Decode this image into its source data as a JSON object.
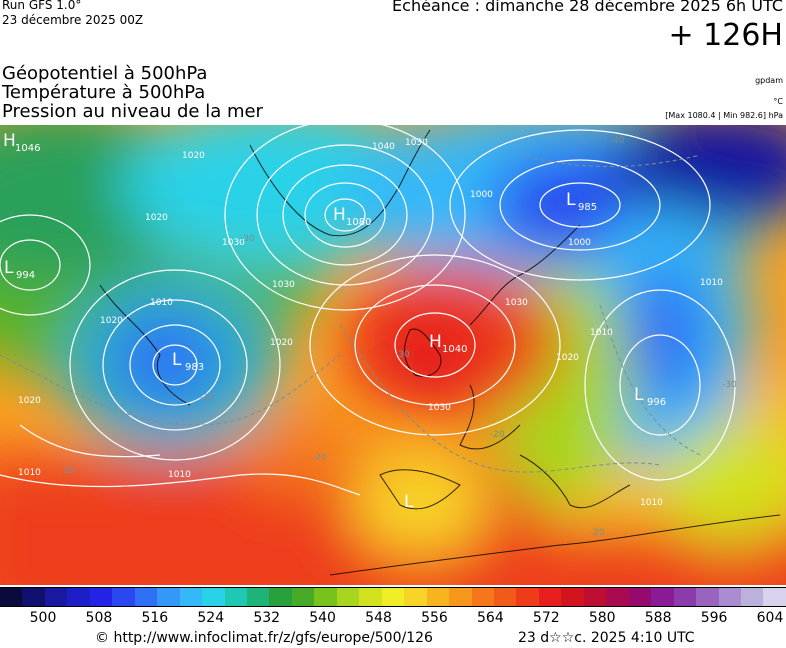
{
  "header": {
    "run": "Run GFS 1.0°",
    "run_date": "23 décembre 2025 00Z",
    "echeance": "Echéance : dimanche 28 décembre 2025 6h UTC",
    "hours": "+ 126H"
  },
  "fields": [
    {
      "label": "Géopotentiel à 500hPa",
      "unit": "gpdam"
    },
    {
      "label": "Température à 500hPa",
      "unit": "°C"
    },
    {
      "label": "Pression au niveau de la mer",
      "unit": "[Max 1080.4 | Min 982.6] hPa"
    }
  ],
  "centers": [
    {
      "type": "H",
      "value": "1046",
      "name": "high-north-canada"
    },
    {
      "type": "H",
      "value": "1080",
      "name": "high-greenland"
    },
    {
      "type": "L",
      "value": "985",
      "name": "low-barents"
    },
    {
      "type": "L",
      "value": "994",
      "name": "low-hudson"
    },
    {
      "type": "L",
      "value": "983",
      "name": "low-newfoundland"
    },
    {
      "type": "H",
      "value": "1040",
      "name": "high-british-isles"
    },
    {
      "type": "L",
      "value": "996",
      "name": "low-black-sea"
    },
    {
      "type": "L",
      "value": "",
      "name": "low-iberia"
    }
  ],
  "isobar_labels": [
    "1020",
    "1040",
    "1030",
    "1020",
    "1000",
    "1000",
    "1020",
    "1010",
    "1030",
    "1020",
    "1010",
    "1020",
    "1010",
    "1030",
    "1010",
    "1020",
    "1010",
    "1030",
    "1030",
    "1010"
  ],
  "temp_labels": [
    "-40",
    "-30",
    "-20",
    "-30",
    "-20",
    "-20",
    "-20",
    "-30",
    "-20"
  ],
  "colorbar": {
    "colors": [
      "#0a0a3c",
      "#10106e",
      "#1818a0",
      "#1e1ec8",
      "#2323e6",
      "#2a48f0",
      "#2f70f5",
      "#3498f8",
      "#34b8f8",
      "#2ad2e8",
      "#20c8b4",
      "#1eb478",
      "#28a03c",
      "#46aa28",
      "#78c21e",
      "#a8d61e",
      "#d2e21e",
      "#f0ec28",
      "#f8d428",
      "#f8b41e",
      "#f6961a",
      "#f4781a",
      "#f25a1a",
      "#ee3c1a",
      "#e61e1e",
      "#d2141e",
      "#be0f32",
      "#aa0a50",
      "#960a6e",
      "#8a1a96",
      "#8c3caa",
      "#9a64be",
      "#aa8cd0",
      "#bcb0dc",
      "#d8d2ec"
    ],
    "tick_labels": [
      "500",
      "508",
      "516",
      "524",
      "532",
      "540",
      "548",
      "556",
      "564",
      "572",
      "580",
      "588",
      "596",
      "604"
    ]
  },
  "footer": {
    "credit": "© http://www.infoclimat.fr/z/gfs/europe/500/126",
    "timestamp": "23 d☆☆c. 2025  4:10 UTC"
  }
}
